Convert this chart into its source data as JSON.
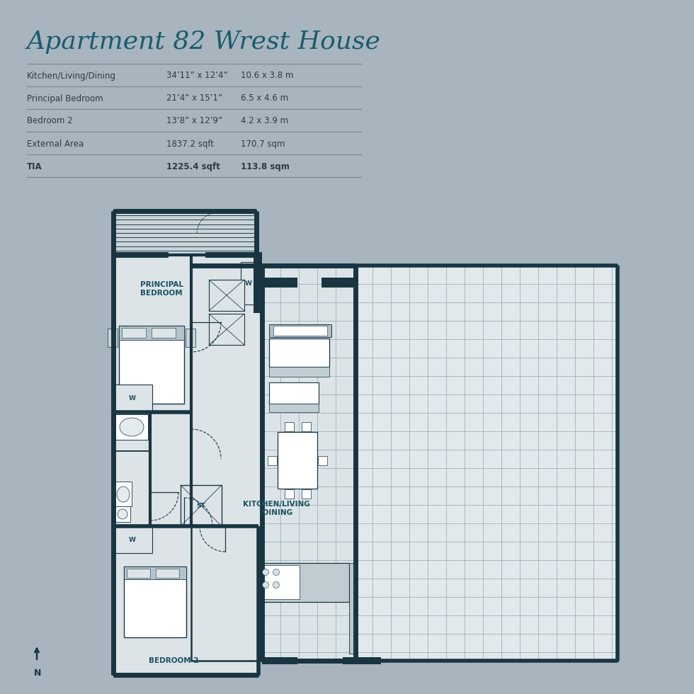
{
  "title": "Apartment 82 Wrest House",
  "bg_color": "#a8b5be",
  "title_color": "#1a5c6e",
  "table_header_line": "#7a8a92",
  "table_rows": [
    [
      "Kitchen/Living/Dining",
      "34’11” x 12’4”",
      "10.6 x 3.8 m"
    ],
    [
      "Principal Bedroom",
      "21’4” x 15’1”",
      "6.5 x 4.6 m"
    ],
    [
      "Bedroom 2",
      "13’8” x 12’9”",
      "4.2 x 3.9 m"
    ],
    [
      "External Area",
      "1837.2 sqft",
      "170.7 sqm"
    ],
    [
      "TIA",
      "1225.4 sqft",
      "113.8 sqm"
    ]
  ],
  "wall_color": "#1a3542",
  "room_fill": "#dce4e8",
  "terrace_fill": "#e2e9ec",
  "grid_color": "#96adb8",
  "room_text_color": "#1a5060",
  "stair_fill": "#c8d4d8"
}
